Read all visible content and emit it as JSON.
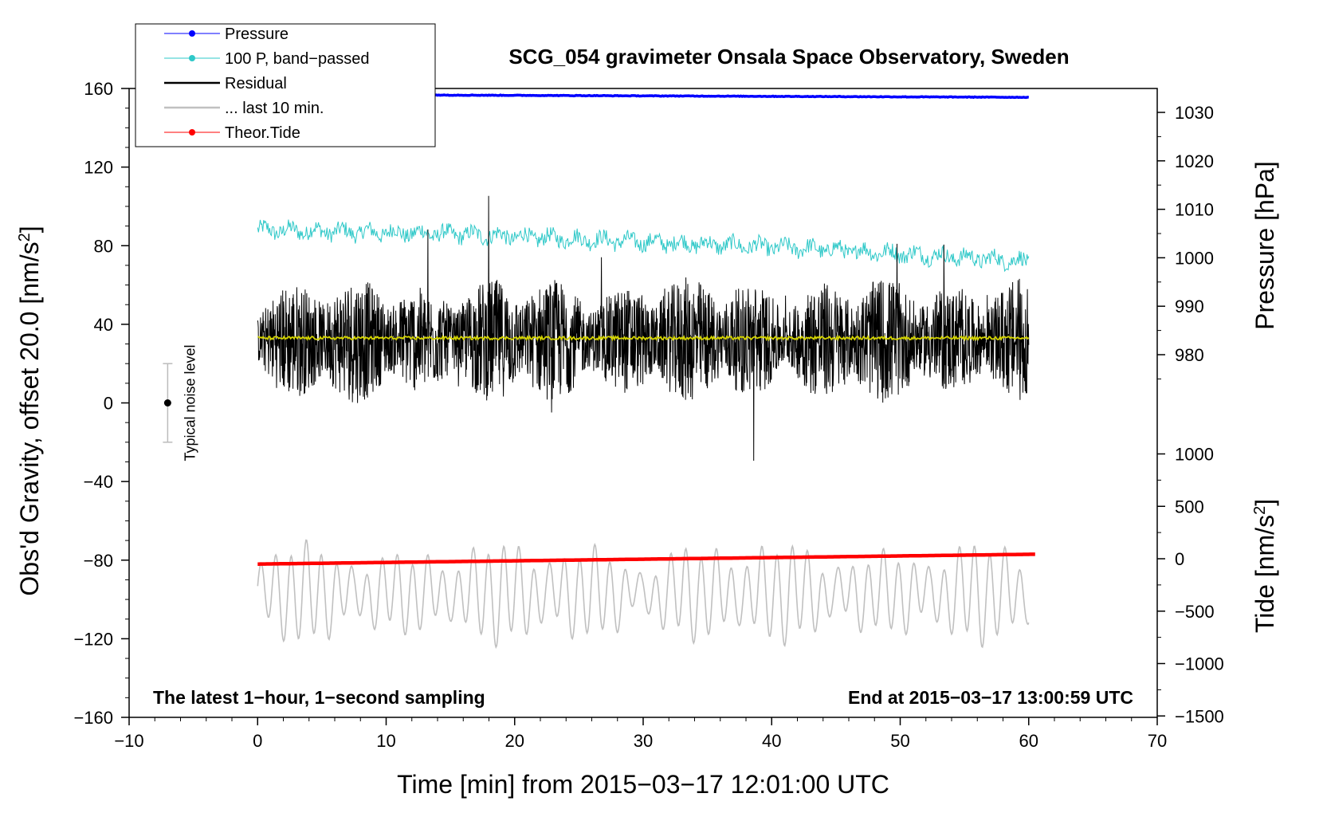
{
  "chart_data": {
    "type": "line",
    "title": "SCG_054 gravimeter Onsala Space Observatory, Sweden",
    "xlabel": "Time [min] from 2015−03−17 12:01:00 UTC",
    "ylabel_left": "Obs'd Gravity, offset 20.0 [nm/s",
    "ylabel_left_sup": "2",
    "ylabel_left_end": "]",
    "ylabel_right_pressure": "Pressure [hPa]",
    "ylabel_right_tide": "Tide [nm/s",
    "ylabel_right_tide_sup": "2",
    "ylabel_right_tide_end": "]",
    "xlim": [
      -10,
      70
    ],
    "ylim": [
      -160,
      160
    ],
    "x_ticks": [
      {
        "value": -10,
        "label": "−10"
      },
      {
        "value": 0,
        "label": "0"
      },
      {
        "value": 10,
        "label": "10"
      },
      {
        "value": 20,
        "label": "20"
      },
      {
        "value": 30,
        "label": "30"
      },
      {
        "value": 40,
        "label": "40"
      },
      {
        "value": 50,
        "label": "50"
      },
      {
        "value": 60,
        "label": "60"
      },
      {
        "value": 70,
        "label": "70"
      }
    ],
    "y_ticks": [
      {
        "value": 160,
        "label": "160"
      },
      {
        "value": 120,
        "label": "120"
      },
      {
        "value": 80,
        "label": "80"
      },
      {
        "value": 40,
        "label": "40"
      },
      {
        "value": 0,
        "label": "0"
      },
      {
        "value": -40,
        "label": "−40"
      },
      {
        "value": -80,
        "label": "−80"
      },
      {
        "value": -120,
        "label": "−120"
      },
      {
        "value": -160,
        "label": "−160"
      }
    ],
    "pressure_axis": {
      "ticks": [
        {
          "value": 1030,
          "label": "1030"
        },
        {
          "value": 1020,
          "label": "1020"
        },
        {
          "value": 1010,
          "label": "1010"
        },
        {
          "value": 1000,
          "label": "1000"
        },
        {
          "value": 990,
          "label": "990"
        },
        {
          "value": 980,
          "label": "980"
        }
      ]
    },
    "tide_axis": {
      "ticks": [
        {
          "value": 1000,
          "label": "1000"
        },
        {
          "value": 500,
          "label": "500"
        },
        {
          "value": 0,
          "label": "0"
        },
        {
          "value": -500,
          "label": "−500"
        },
        {
          "value": -1000,
          "label": "−1000"
        },
        {
          "value": -1500,
          "label": "−1500"
        }
      ]
    },
    "series": [
      {
        "name": "Pressure",
        "color": "#0000ff",
        "marker": true,
        "x": [
          0,
          60
        ],
        "values": [
          157,
          155.5
        ],
        "units": "gravity-axis"
      },
      {
        "name": "100 P, band−passed",
        "color": "#2ec8c8",
        "marker": true,
        "x": [
          0,
          15,
          30,
          45,
          60
        ],
        "values": [
          88,
          86,
          82,
          78,
          72
        ],
        "jitter": 8
      },
      {
        "name": "Residual",
        "color": "#000000",
        "marker": false,
        "x": [
          0,
          60
        ],
        "values": [
          32,
          32
        ],
        "jitter": 18
      },
      {
        "name": "... last 10 min.",
        "color": "#c0c0c0",
        "marker": false,
        "x": [
          0,
          60
        ],
        "values": [
          -97,
          -97
        ],
        "jitter": 15
      },
      {
        "name": "Theor.Tide",
        "color": "#ff0000",
        "marker": true,
        "x": [
          0,
          60.5
        ],
        "values": [
          -82,
          -77
        ]
      },
      {
        "name": "Residual mean",
        "color": "#d4d400",
        "marker": false,
        "x": [
          0,
          60
        ],
        "values": [
          33,
          33
        ],
        "legend": false
      }
    ],
    "noise_level": {
      "label": "Typical noise level",
      "x": -7,
      "center": 0,
      "half_range": 20
    },
    "annotations": {
      "left": "The latest 1−hour, 1−second sampling",
      "right": "End at 2015−03−17 13:00:59 UTC"
    }
  }
}
